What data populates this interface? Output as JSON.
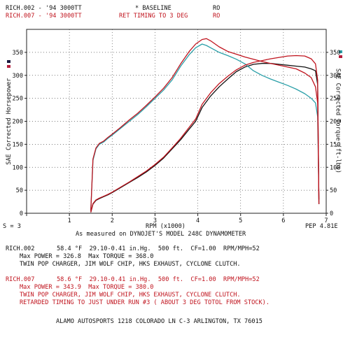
{
  "header": {
    "run1_file": "RICH.002 - '94 3000TT",
    "run1_note": "* BASELINE",
    "run1_ro": "RO",
    "run2_file": "RICH.007 - '94 3000TT",
    "run2_note": "RET TIMING TO 3 DEG",
    "run2_ro": "RO"
  },
  "footer": {
    "smoothing": "S = 3",
    "pep": "PEP 4.81E",
    "measured_by": "As measured on DYNOJET'S MODEL 248C DYNAMOMETER",
    "shop": "ALAMO AUTOSPORTS 1218 COLORADO LN C-3 ARLINGTON, TX 76015"
  },
  "runs": [
    {
      "file": "RICH.002",
      "conditions": "58.4 °F  29.10-0.41 in.Hg.  500 ft.  CF=1.00  RPM/MPH=52",
      "max_line": "Max POWER = 326.8  Max TORQUE = 368.0",
      "notes": [
        "TWIN POP CHARGER, JIM WOLF CHIP, HKS EXHAUST, CYCLONE CLUTCH."
      ]
    },
    {
      "file": "RICH.007",
      "conditions": "58.6 °F  29.10-0.41 in.Hg.  500 ft.  CF=1.00  RPM/MPH=52",
      "max_line": "Max POWER = 343.9  Max TORQUE = 380.0",
      "notes": [
        "TWIN POP CHARGER, JIM WOLF CHIP, HKS EXHAUST, CYCLONE CLUTCH.",
        "RETARDED TIMING TO JUST UNDER RUN #3 ( ABOUT 3 DEG TOTOL FROM STOCK)."
      ]
    }
  ],
  "chart_data": {
    "type": "line",
    "xlabel": "RPM (x1000)",
    "ylabel_left": "SAE Corrected Horsepower",
    "ylabel_right": "SAE Corrected Torque (ft-lbs)",
    "xlim": [
      0,
      7
    ],
    "ylim": [
      0,
      400
    ],
    "x_ticks": [
      "1",
      "2",
      "3",
      "4",
      "5",
      "6",
      "7"
    ],
    "y_ticks": [
      "0",
      "50",
      "100",
      "150",
      "200",
      "250",
      "300",
      "350"
    ],
    "grid": true,
    "colors": {
      "run1_hp": "#111111",
      "run1_tq": "#2a9fa8",
      "run2_hp": "#c0141e",
      "run2_tq": "#c0141e",
      "run1_marker": "#1a1a40",
      "run2_marker": "#b41e3c"
    },
    "series": [
      {
        "name": "RICH.002",
        "measure": "horsepower",
        "x": [
          1.5,
          1.55,
          1.62,
          1.7,
          1.8,
          1.9,
          2.0,
          2.2,
          2.4,
          2.6,
          2.8,
          3.0,
          3.2,
          3.4,
          3.6,
          3.8,
          3.95,
          4.1,
          4.3,
          4.5,
          4.7,
          4.9,
          5.1,
          5.3,
          5.5,
          5.7,
          5.9,
          6.1,
          6.3,
          6.5,
          6.65,
          6.75,
          6.8,
          6.83
        ],
        "y": [
          2,
          20,
          28,
          32,
          36,
          40,
          45,
          56,
          67,
          78,
          90,
          104,
          120,
          140,
          160,
          183,
          200,
          230,
          255,
          275,
          292,
          308,
          318,
          324,
          326,
          326,
          324,
          322,
          320,
          318,
          314,
          310,
          280,
          20
        ]
      },
      {
        "name": "RICH.002",
        "measure": "torque",
        "x": [
          1.5,
          1.55,
          1.62,
          1.7,
          1.8,
          1.9,
          2.0,
          2.2,
          2.4,
          2.6,
          2.8,
          3.0,
          3.2,
          3.4,
          3.6,
          3.8,
          3.95,
          4.1,
          4.2,
          4.3,
          4.5,
          4.7,
          4.9,
          5.1,
          5.3,
          5.5,
          5.7,
          5.9,
          6.1,
          6.3,
          6.5,
          6.65,
          6.75,
          6.8,
          6.83
        ],
        "y": [
          5,
          115,
          140,
          150,
          155,
          163,
          170,
          185,
          200,
          215,
          232,
          250,
          268,
          290,
          320,
          345,
          360,
          368,
          365,
          360,
          350,
          343,
          335,
          325,
          310,
          300,
          292,
          285,
          278,
          270,
          260,
          250,
          240,
          210,
          30
        ]
      },
      {
        "name": "RICH.007",
        "measure": "horsepower",
        "x": [
          1.5,
          1.55,
          1.62,
          1.7,
          1.8,
          1.9,
          2.0,
          2.2,
          2.4,
          2.6,
          2.8,
          3.0,
          3.2,
          3.4,
          3.6,
          3.8,
          3.95,
          4.1,
          4.3,
          4.5,
          4.7,
          4.9,
          5.1,
          5.3,
          5.5,
          5.7,
          5.9,
          6.1,
          6.3,
          6.5,
          6.65,
          6.75,
          6.8,
          6.83
        ],
        "y": [
          2,
          21,
          29,
          33,
          37,
          41,
          46,
          57,
          68,
          80,
          92,
          106,
          122,
          142,
          163,
          187,
          205,
          237,
          262,
          282,
          298,
          312,
          322,
          328,
          332,
          336,
          339,
          342,
          343,
          342,
          336,
          325,
          290,
          20
        ]
      },
      {
        "name": "RICH.007",
        "measure": "torque",
        "x": [
          1.5,
          1.55,
          1.62,
          1.7,
          1.8,
          1.9,
          2.0,
          2.2,
          2.4,
          2.6,
          2.8,
          3.0,
          3.2,
          3.4,
          3.6,
          3.8,
          3.95,
          4.1,
          4.2,
          4.3,
          4.5,
          4.7,
          4.9,
          5.1,
          5.3,
          5.5,
          5.7,
          5.9,
          6.1,
          6.3,
          6.5,
          6.65,
          6.75,
          6.8,
          6.83
        ],
        "y": [
          5,
          118,
          142,
          152,
          157,
          165,
          172,
          187,
          203,
          218,
          235,
          253,
          272,
          295,
          325,
          352,
          368,
          378,
          380,
          375,
          362,
          352,
          346,
          340,
          335,
          330,
          326,
          322,
          318,
          314,
          305,
          295,
          275,
          240,
          30
        ]
      }
    ]
  }
}
